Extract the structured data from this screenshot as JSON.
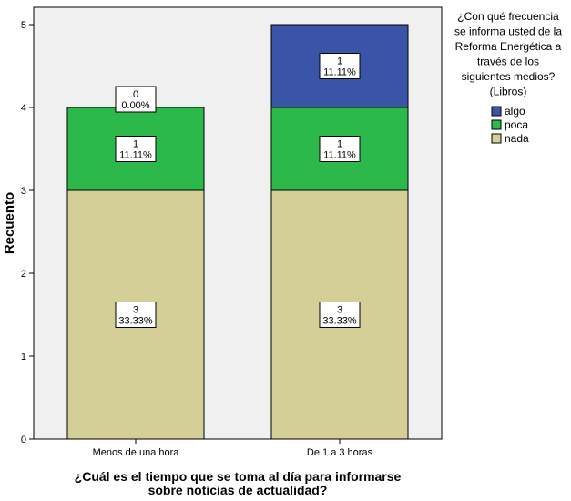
{
  "chart_data": {
    "type": "bar",
    "stacked": true,
    "categories": [
      "Menos de una hora",
      "De 1 a 3 horas"
    ],
    "series": [
      {
        "name": "nada",
        "color": "#D4CF96",
        "values": [
          3,
          3
        ],
        "percents": [
          "33.33%",
          "33.33%"
        ]
      },
      {
        "name": "poca",
        "color": "#2DB84B",
        "values": [
          1,
          1
        ],
        "percents": [
          "11.11%",
          "11.11%"
        ]
      },
      {
        "name": "algo",
        "color": "#3A55A8",
        "values": [
          0,
          1
        ],
        "percents": [
          "0.00%",
          "11.11%"
        ]
      }
    ],
    "xlabel_lines": [
      "¿Cuál es el tiempo que se toma al día para informarse",
      "sobre noticias de actualidad?"
    ],
    "ylabel": "Recuento",
    "ylim": [
      0,
      5
    ],
    "yticks": [
      0,
      1,
      2,
      3,
      4,
      5
    ],
    "legend": {
      "title_lines": [
        "¿Con qué frecuencia",
        "se informa usted de la",
        "Reforma Energética a",
        "través de los",
        "siguientes medios?",
        "(Libros)"
      ],
      "order": [
        "algo",
        "poca",
        "nada"
      ],
      "position": "right"
    },
    "plot_background": "#F0F0F0"
  }
}
